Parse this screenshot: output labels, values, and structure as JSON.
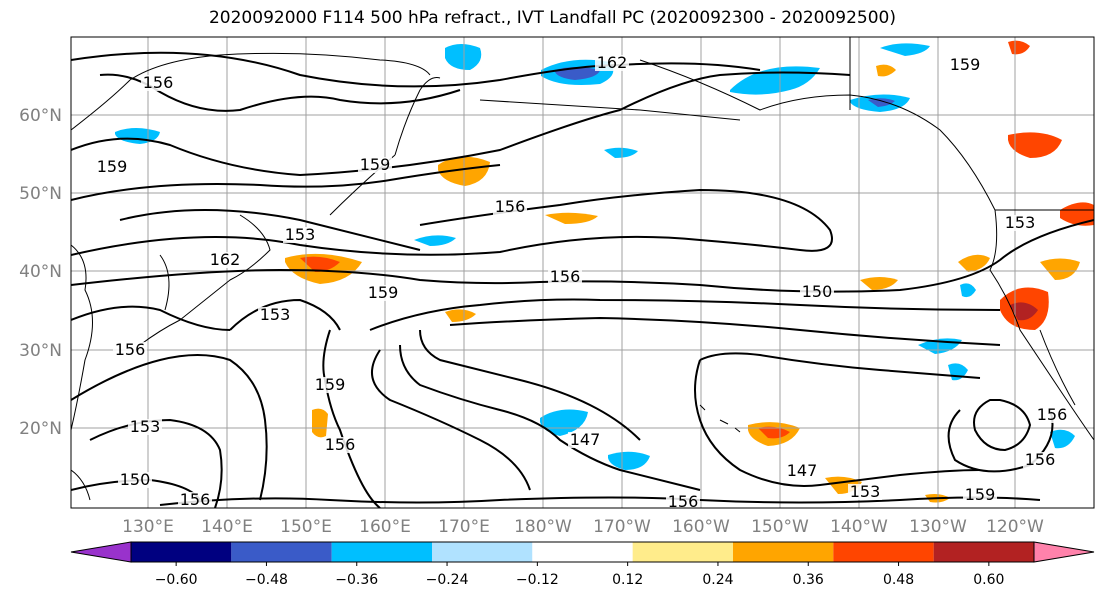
{
  "title": "2020092000 F114 500 hPa refract., IVT Landfall PC (2020092300 - 2020092500)",
  "map": {
    "lon_labels": [
      "130°E",
      "140°E",
      "150°E",
      "160°E",
      "170°E",
      "180°W",
      "170°W",
      "160°W",
      "150°W",
      "140°W",
      "130°W",
      "120°W"
    ],
    "lat_labels": [
      "60°N",
      "50°N",
      "40°N",
      "30°N",
      "20°N"
    ],
    "contour_labels": [
      "156",
      "162",
      "159",
      "159",
      "159",
      "156",
      "153",
      "162",
      "159",
      "156",
      "150",
      "153",
      "153",
      "156",
      "159",
      "156",
      "147",
      "153",
      "150",
      "156",
      "147",
      "153",
      "156",
      "156",
      "156",
      "159"
    ],
    "colors": {
      "contour": "#000000",
      "grid": "#a0a0a0",
      "coast": "#000000",
      "axis_text": "#808080"
    }
  },
  "colorbar": {
    "ticks": [
      "−0.60",
      "−0.48",
      "−0.36",
      "−0.24",
      "−0.12",
      "0.12",
      "0.24",
      "0.36",
      "0.48",
      "0.60"
    ],
    "colors": [
      "#9932CC",
      "#000080",
      "#3A5BC8",
      "#00BFFF",
      "#B0E2FF",
      "#FFFFFF",
      "#FFEC8B",
      "#FFA500",
      "#FF4500",
      "#B22222",
      "#FF82AB"
    ]
  }
}
